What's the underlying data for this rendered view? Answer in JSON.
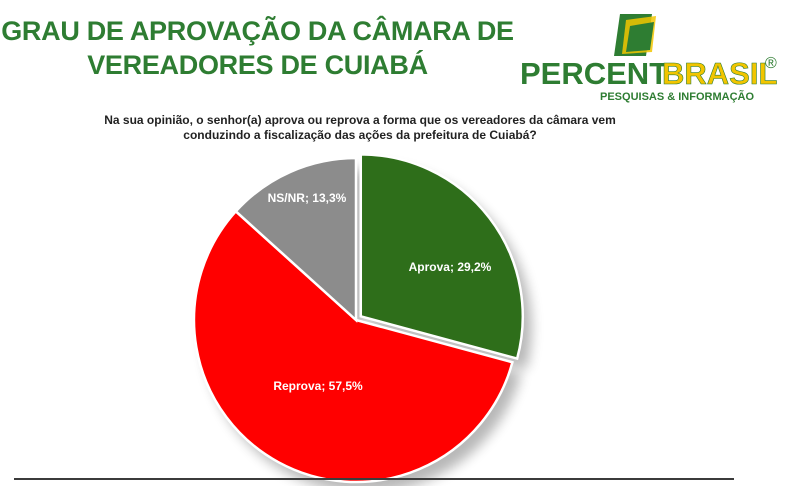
{
  "header": {
    "title_line1": "GRAU DE APROVAÇÃO DA CÂMARA DE",
    "title_line2": "VEREADORES DE CUIABÁ"
  },
  "logo": {
    "brand_part1": "PERCENT",
    "brand_part2": "BRASIL",
    "registered": "®",
    "tagline": "PESQUISAS & INFORMAÇÃO",
    "colors": {
      "green": "#2e7d32",
      "yellow": "#f2c500"
    }
  },
  "question": {
    "line1": "Na sua opinião, o senhor(a) aprova ou reprova a forma que os vereadores da câmara vem",
    "line2": "conduzindo a fiscalização das ações da prefeitura de Cuiabá?"
  },
  "chart_data": {
    "type": "pie",
    "slices": [
      {
        "label": "Aprova",
        "value": 29.2,
        "display": "Aprova; 29,2%",
        "color": "#2e6e1a"
      },
      {
        "label": "Reprova",
        "value": 57.5,
        "display": "Reprova; 57,5%",
        "color": "#ff0000"
      },
      {
        "label": "NS/NR",
        "value": 13.3,
        "display": "NS/NR; 13,3%",
        "color": "#8c8c8c"
      }
    ],
    "start": "12 o'clock",
    "direction": "clockwise",
    "exploded": "Aprova"
  }
}
